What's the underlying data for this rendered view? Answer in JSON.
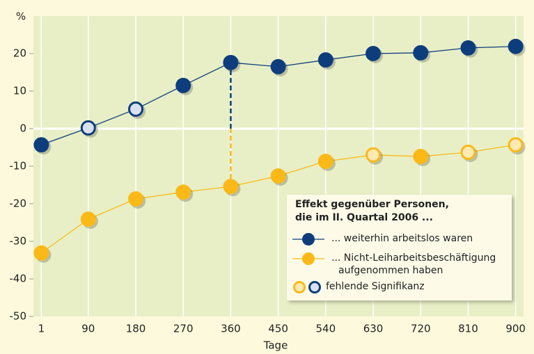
{
  "chart_data": {
    "type": "line",
    "ylabel": "%",
    "xlabel": "Tage",
    "xlim": [
      -14,
      915
    ],
    "xticks": [
      1,
      90,
      180,
      270,
      360,
      450,
      540,
      630,
      720,
      810,
      900
    ],
    "ylim": [
      -50,
      30
    ],
    "yticks": [
      -50,
      -40,
      -30,
      -20,
      -10,
      0,
      10,
      20
    ],
    "x": [
      1,
      90,
      180,
      270,
      360,
      450,
      540,
      630,
      720,
      810,
      900
    ],
    "series": [
      {
        "name": "... weiterhin arbeitslos waren",
        "color": "#0d3d7c",
        "hollow_color": "#d9e1ee",
        "values": [
          -4.3,
          0.2,
          5.2,
          11.5,
          17.6,
          16.5,
          18.3,
          20,
          20.2,
          21.5,
          21.9
        ],
        "not_significant": [
          false,
          true,
          true,
          false,
          false,
          false,
          false,
          false,
          false,
          false,
          false
        ]
      },
      {
        "name": "... Nicht-Leiharbeitsbeschäftigung aufgenommen haben",
        "color": "#fbb917",
        "hollow_color": "#fde9b4",
        "values": [
          -33.1,
          -24.1,
          -18.7,
          -16.9,
          -15.4,
          -12.6,
          -8.7,
          -7.0,
          -7.4,
          -6.3,
          -4.3
        ],
        "not_significant": [
          false,
          false,
          false,
          false,
          false,
          false,
          false,
          true,
          false,
          true,
          true
        ]
      }
    ],
    "highlight_index": 4,
    "legend_title": [
      "Effekt gegenüber Personen,",
      "die im II. Quartal 2006 ..."
    ],
    "legend_note": "fehlende Signifikanz",
    "grid": true
  }
}
